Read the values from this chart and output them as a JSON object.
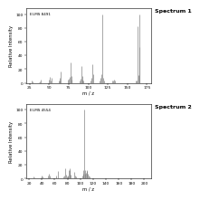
{
  "spectrum1": {
    "label": "EI-MS 8491",
    "title": "Spectrum 1",
    "mz": [
      27,
      29,
      37,
      38,
      39,
      50,
      51,
      52,
      53,
      62,
      63,
      64,
      65,
      74,
      75,
      76,
      77,
      78,
      79,
      89,
      90,
      91,
      92,
      93,
      94,
      103,
      104,
      105,
      106,
      115,
      116,
      117,
      118,
      119,
      120,
      131,
      132,
      133,
      134,
      161,
      162,
      163,
      164,
      165,
      166
    ],
    "intensity": [
      3,
      2,
      1,
      2,
      5,
      5,
      9,
      3,
      7,
      3,
      8,
      4,
      16,
      5,
      6,
      9,
      30,
      10,
      5,
      4,
      6,
      25,
      10,
      5,
      3,
      4,
      8,
      27,
      13,
      4,
      7,
      13,
      100,
      8,
      3,
      4,
      4,
      5,
      3,
      3,
      4,
      82,
      12,
      100,
      52
    ],
    "xlim": [
      20,
      180
    ],
    "ylim": [
      0,
      108
    ],
    "xticks": [
      25,
      50,
      75,
      100,
      125,
      150,
      175
    ],
    "yticks": [
      0,
      20,
      40,
      60,
      80,
      100
    ]
  },
  "spectrum2": {
    "label": "EI-MS 4554",
    "title": "Spectrum 2",
    "mz": [
      20,
      25,
      27,
      29,
      37,
      38,
      39,
      41,
      50,
      51,
      52,
      53,
      62,
      63,
      65,
      74,
      75,
      77,
      78,
      79,
      80,
      81,
      82,
      83,
      84,
      85,
      91,
      92,
      93,
      103,
      104,
      105,
      106,
      107,
      108,
      109,
      110,
      111,
      112,
      113,
      114
    ],
    "intensity": [
      1,
      1,
      3,
      2,
      1,
      2,
      4,
      3,
      4,
      7,
      2,
      5,
      2,
      5,
      11,
      3,
      4,
      15,
      6,
      3,
      3,
      5,
      12,
      15,
      13,
      6,
      10,
      5,
      3,
      4,
      7,
      13,
      100,
      12,
      7,
      8,
      13,
      11,
      7,
      4,
      3
    ],
    "xlim": [
      15,
      210
    ],
    "ylim": [
      0,
      108
    ],
    "xticks": [
      20,
      40,
      60,
      80,
      100,
      120,
      140,
      160,
      180,
      200
    ],
    "yticks": [
      0,
      20,
      40,
      60,
      80,
      100
    ]
  },
  "bar_color": "#777777",
  "bg_color": "#ffffff",
  "title_fontsize": 4.5,
  "label_fontsize": 3.8,
  "tick_fontsize": 3.2,
  "annot_fontsize": 3.0,
  "xlabel": "m / z",
  "ylabel": "Relative Intensity"
}
